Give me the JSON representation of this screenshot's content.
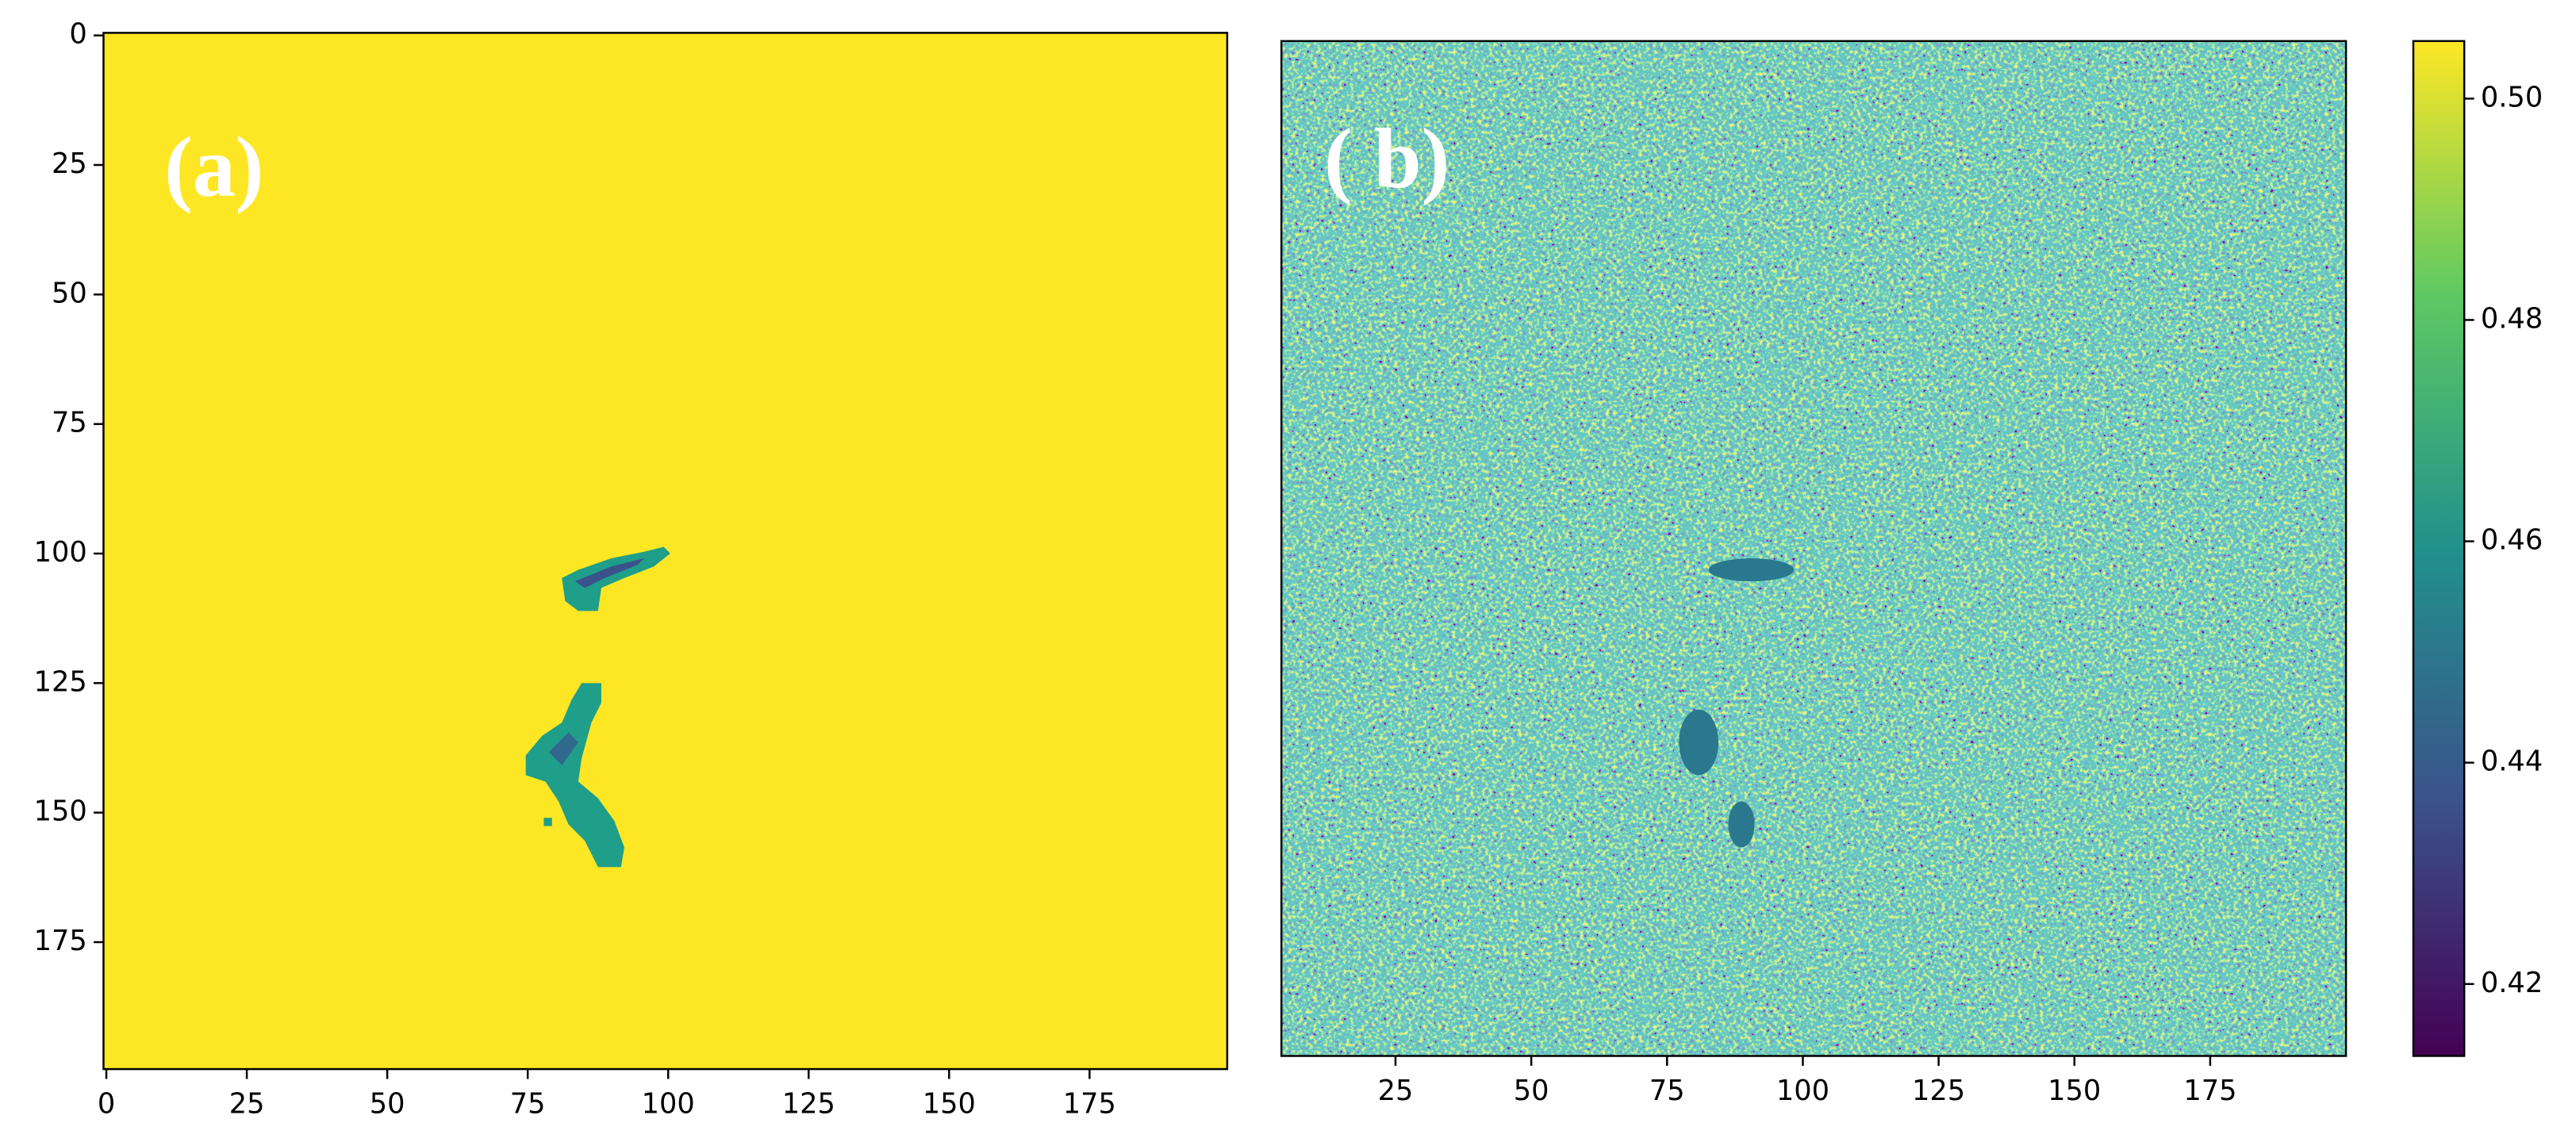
{
  "chart_data": [
    {
      "type": "heatmap",
      "annotation": "(a)",
      "color": "#fde725",
      "xlim": [
        -0.5,
        199.5
      ],
      "ylim": [
        199.5,
        -0.5
      ],
      "xticks": [
        0,
        25,
        50,
        75,
        100,
        125,
        150,
        175
      ],
      "yticks": [
        0,
        25,
        50,
        75,
        100,
        125,
        150,
        175
      ]
    },
    {
      "type": "heatmap",
      "annotation": "( b)",
      "xlim": [
        4,
        200
      ],
      "ylim": [
        200,
        0
      ],
      "xticks": [
        25,
        50,
        75,
        100,
        125,
        150,
        175
      ],
      "colorbar": {
        "lim": [
          0.4135,
          0.5052
        ],
        "ticks": [
          0.42,
          0.44,
          0.46,
          0.48,
          {
            "value": 0.5,
            "label": "0.50"
          }
        ]
      }
    }
  ]
}
